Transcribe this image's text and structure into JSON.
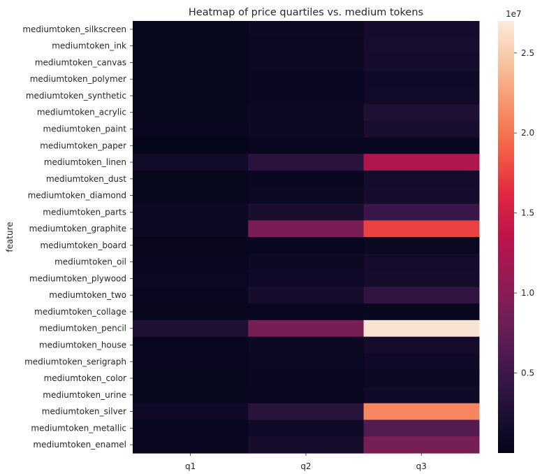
{
  "chart_data": {
    "type": "heatmap",
    "title": "Heatmap of price quartiles vs. medium tokens",
    "xlabel": "",
    "ylabel": "feature",
    "columns": [
      "q1",
      "q2",
      "q3"
    ],
    "rows": [
      "mediumtoken_silkscreen",
      "mediumtoken_ink",
      "mediumtoken_canvas",
      "mediumtoken_polymer",
      "mediumtoken_synthetic",
      "mediumtoken_acrylic",
      "mediumtoken_paint",
      "mediumtoken_paper",
      "mediumtoken_linen",
      "mediumtoken_dust",
      "mediumtoken_diamond",
      "mediumtoken_parts",
      "mediumtoken_graphite",
      "mediumtoken_board",
      "mediumtoken_oil",
      "mediumtoken_plywood",
      "mediumtoken_two",
      "mediumtoken_collage",
      "mediumtoken_pencil",
      "mediumtoken_house",
      "mediumtoken_serigraph",
      "mediumtoken_color",
      "mediumtoken_urine",
      "mediumtoken_silver",
      "mediumtoken_metallic",
      "mediumtoken_enamel"
    ],
    "values": [
      [
        400000,
        800000,
        1800000
      ],
      [
        400000,
        700000,
        1900000
      ],
      [
        400000,
        700000,
        1800000
      ],
      [
        350000,
        600000,
        1200000
      ],
      [
        350000,
        600000,
        1300000
      ],
      [
        400000,
        900000,
        2600000
      ],
      [
        500000,
        800000,
        2100000
      ],
      [
        300000,
        500000,
        600000
      ],
      [
        1500000,
        3500000,
        12500000
      ],
      [
        400000,
        600000,
        1600000
      ],
      [
        400000,
        700000,
        1700000
      ],
      [
        900000,
        2100000,
        4800000
      ],
      [
        800000,
        9000000,
        17500000
      ],
      [
        400000,
        500000,
        700000
      ],
      [
        500000,
        800000,
        1600000
      ],
      [
        700000,
        1100000,
        1700000
      ],
      [
        600000,
        1800000,
        4000000
      ],
      [
        400000,
        500000,
        600000
      ],
      [
        2600000,
        8800000,
        26500000
      ],
      [
        500000,
        800000,
        1600000
      ],
      [
        500000,
        700000,
        1200000
      ],
      [
        400000,
        600000,
        900000
      ],
      [
        400000,
        500000,
        1200000
      ],
      [
        1200000,
        3300000,
        21000000
      ],
      [
        500000,
        1100000,
        6500000
      ],
      [
        500000,
        1800000,
        8800000
      ]
    ],
    "colorbar": {
      "min": 0,
      "max": 27000000,
      "ticks": [
        5000000,
        10000000,
        15000000,
        20000000,
        25000000
      ],
      "tick_labels": [
        "0.5",
        "1.0",
        "1.5",
        "2.0",
        "2.5"
      ],
      "offset_label": "1e7"
    },
    "colormap": "rocket"
  }
}
